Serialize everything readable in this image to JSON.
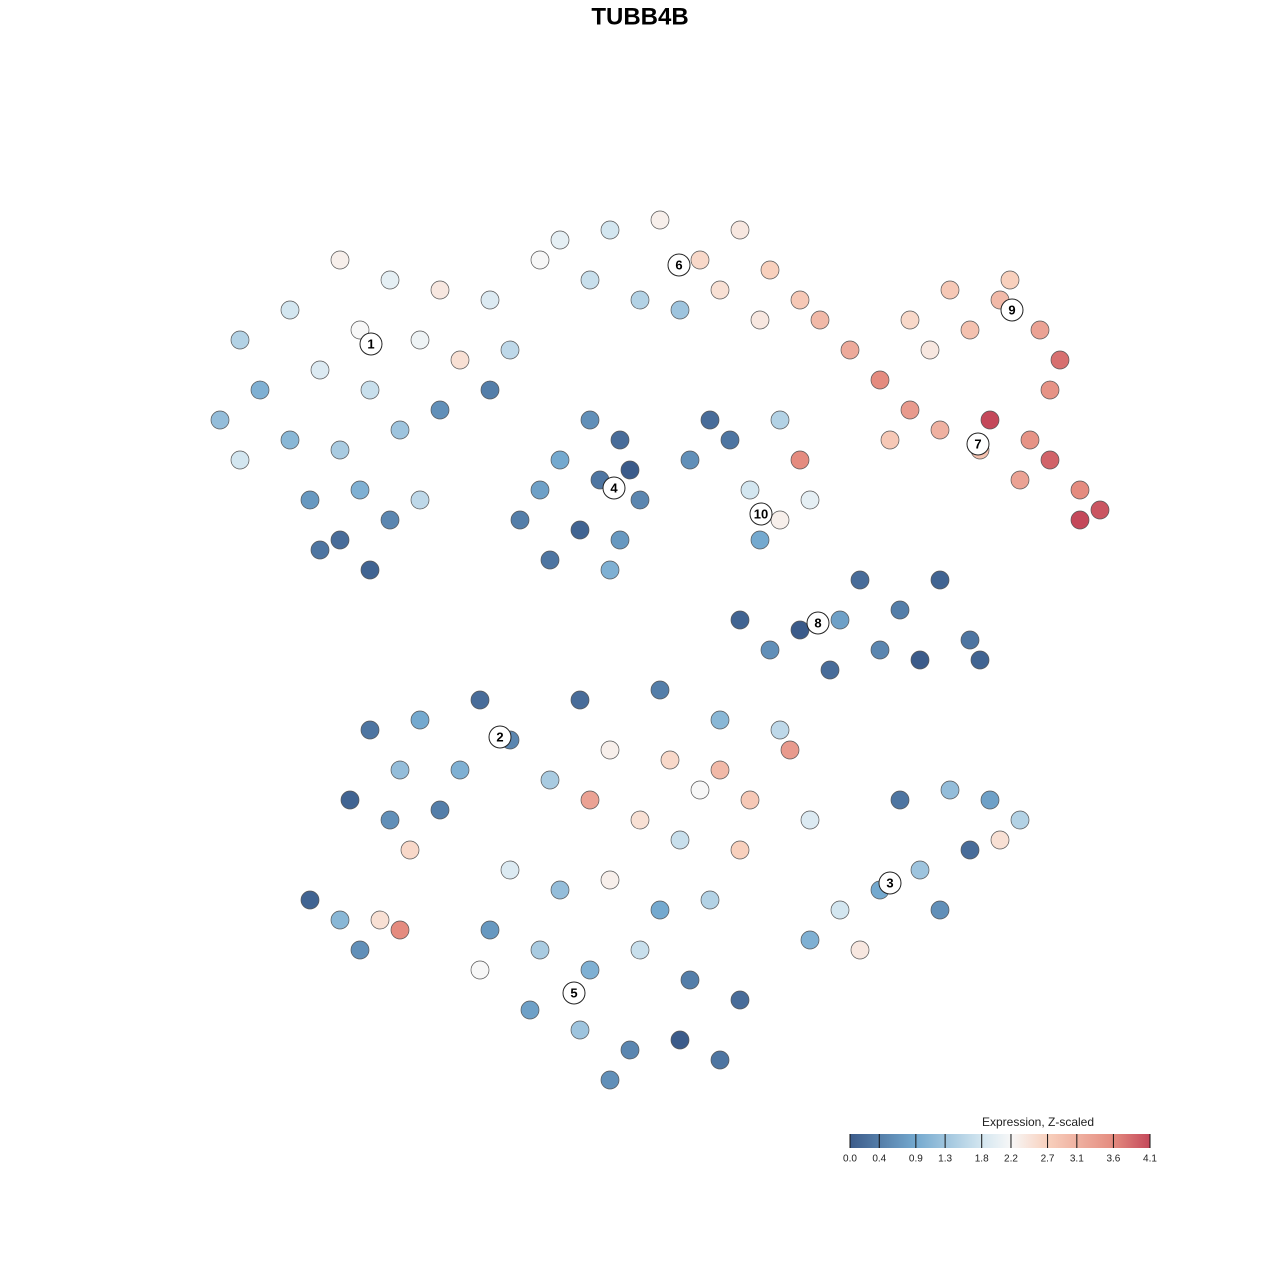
{
  "chart_data": {
    "type": "scatter",
    "title": "TUBB4B",
    "xlim": [
      -50,
      50
    ],
    "ylim": [
      -50,
      50
    ],
    "x": [
      -30,
      -25,
      -20,
      -15,
      -35,
      -40,
      -28,
      -22,
      -18,
      -13,
      -38,
      -32,
      -27,
      -42,
      -35,
      -30,
      -24,
      -20,
      -15,
      -33,
      -28,
      -25,
      -30,
      -27,
      -32,
      -40,
      -22,
      -8,
      -3,
      2,
      6,
      10,
      13,
      16,
      -5,
      0,
      4,
      8,
      18,
      -10,
      12,
      27,
      31,
      36,
      40,
      42,
      41,
      33,
      29,
      37,
      21,
      24,
      27,
      30,
      34,
      35,
      38,
      41,
      44,
      46,
      44,
      25,
      39,
      -5,
      -2,
      -8,
      -4,
      0,
      -10,
      -12,
      -6,
      -2,
      -9,
      -3,
      -1,
      5,
      9,
      14,
      16,
      11,
      14,
      12,
      17,
      7,
      10,
      16,
      22,
      26,
      30,
      33,
      28,
      24,
      19,
      13,
      34,
      20,
      -27,
      -22,
      -16,
      -13,
      -24,
      -29,
      -25,
      -20,
      -23,
      -18,
      -33,
      -30,
      -26,
      -24,
      -28,
      -6,
      2,
      8,
      14,
      -3,
      3,
      8,
      -5,
      0,
      6,
      11,
      15,
      -9,
      4,
      10,
      17,
      26,
      31,
      35,
      38,
      33,
      28,
      24,
      20,
      30,
      17,
      22,
      36,
      -13,
      -8,
      -3,
      2,
      7,
      -15,
      -10,
      -5,
      0,
      5,
      10,
      -11,
      -6,
      -1,
      4,
      8,
      -3,
      -16
    ],
    "y": [
      38,
      36,
      35,
      34,
      33,
      30,
      31,
      30,
      28,
      29,
      25,
      27,
      25,
      22,
      20,
      19,
      21,
      23,
      25,
      14,
      15,
      12,
      10,
      7,
      9,
      18,
      14,
      40,
      41,
      42,
      38,
      41,
      37,
      34,
      36,
      34,
      33,
      35,
      32,
      38,
      32,
      32,
      35,
      34,
      31,
      28,
      25,
      31,
      29,
      36,
      29,
      26,
      23,
      21,
      19,
      22,
      16,
      18,
      15,
      13,
      12,
      20,
      20,
      22,
      20,
      18,
      16,
      14,
      15,
      12,
      11,
      10,
      8,
      7,
      17,
      18,
      20,
      22,
      18,
      15,
      12,
      10,
      14,
      22,
      2,
      1,
      6,
      3,
      6,
      0,
      -2,
      -1,
      -3,
      -1,
      -2,
      2,
      -9,
      -8,
      -6,
      -10,
      -13,
      -16,
      -18,
      -17,
      -21,
      -13,
      -26,
      -28,
      -28,
      -29,
      -31,
      -6,
      -5,
      -8,
      -9,
      -11,
      -12,
      -13,
      -16,
      -18,
      -15,
      -16,
      -11,
      -14,
      -20,
      -21,
      -18,
      -16,
      -15,
      -16,
      -18,
      -21,
      -23,
      -25,
      -27,
      -27,
      -30,
      -31,
      -20,
      -23,
      -25,
      -24,
      -27,
      -26,
      -29,
      -31,
      -33,
      -31,
      -34,
      -36,
      -37,
      -39,
      -41,
      -40,
      -42,
      -44,
      -33
    ],
    "values": [
      2.3,
      2.0,
      2.4,
      1.9,
      1.8,
      1.5,
      2.2,
      2.1,
      2.5,
      1.6,
      1.0,
      1.9,
      1.7,
      1.2,
      1.1,
      1.4,
      1.3,
      0.6,
      0.4,
      0.7,
      1.0,
      0.5,
      0.2,
      0.1,
      0.3,
      1.8,
      1.6,
      2.0,
      1.8,
      2.3,
      2.6,
      2.4,
      2.7,
      2.8,
      1.7,
      1.5,
      1.3,
      2.5,
      3.0,
      2.2,
      2.4,
      2.6,
      2.8,
      3.0,
      3.3,
      3.8,
      3.5,
      2.9,
      2.4,
      2.7,
      3.2,
      3.6,
      3.4,
      3.1,
      2.9,
      4.1,
      3.3,
      3.9,
      3.6,
      4.0,
      4.1,
      2.8,
      3.5,
      0.6,
      0.2,
      0.9,
      0.3,
      0.5,
      0.8,
      0.4,
      0.1,
      0.7,
      0.3,
      1.0,
      0.0,
      0.6,
      0.3,
      1.5,
      3.6,
      1.8,
      2.3,
      0.9,
      2.0,
      0.2,
      0.1,
      0.0,
      0.2,
      0.4,
      0.1,
      0.3,
      0.0,
      0.5,
      0.2,
      0.6,
      0.1,
      0.8,
      0.3,
      0.9,
      0.2,
      0.5,
      1.2,
      0.1,
      0.6,
      0.4,
      2.6,
      1.0,
      0.1,
      1.1,
      2.5,
      3.6,
      0.6,
      0.2,
      0.4,
      1.1,
      1.6,
      2.3,
      2.6,
      3.0,
      3.3,
      2.5,
      2.2,
      2.8,
      3.4,
      1.4,
      1.7,
      2.7,
      1.9,
      0.3,
      1.2,
      0.8,
      1.5,
      0.2,
      1.3,
      0.9,
      1.8,
      0.6,
      1.0,
      2.4,
      2.5,
      1.9,
      1.2,
      2.3,
      0.9,
      1.5,
      0.7,
      1.4,
      1.0,
      1.7,
      0.4,
      0.2,
      0.8,
      1.3,
      0.5,
      0.0,
      0.3,
      0.6,
      2.2
    ],
    "clusters": {
      "labels": [
        "1",
        "2",
        "3",
        "4",
        "5",
        "6",
        "7",
        "8",
        "9",
        "10"
      ],
      "x": [
        -26.9,
        -14,
        25,
        -2.6,
        -6.6,
        3.9,
        33.8,
        17.8,
        37.2,
        12.1
      ],
      "y": [
        29.6,
        -9.7,
        -24.3,
        15.2,
        -35.3,
        37.5,
        19.6,
        1.7,
        33,
        12.6
      ]
    },
    "colorbar": {
      "title": "Expression, Z-scaled",
      "lim": [
        0,
        4.1
      ],
      "ticks": [
        {
          "value": 0,
          "label": "0.0"
        },
        0.4,
        0.9,
        1.3,
        1.8,
        2.2,
        2.7,
        3.1,
        3.6,
        4.1
      ],
      "stops": [
        [
          0,
          "#3b5b8a"
        ],
        [
          0.9,
          "#74a9cf"
        ],
        [
          1.8,
          "#d3e6f0"
        ],
        [
          2.2,
          "#f7f7f7"
        ],
        [
          2.7,
          "#f8d0bd"
        ],
        [
          3.6,
          "#e48b7f"
        ],
        [
          4.1,
          "#c4485a"
        ]
      ]
    }
  }
}
